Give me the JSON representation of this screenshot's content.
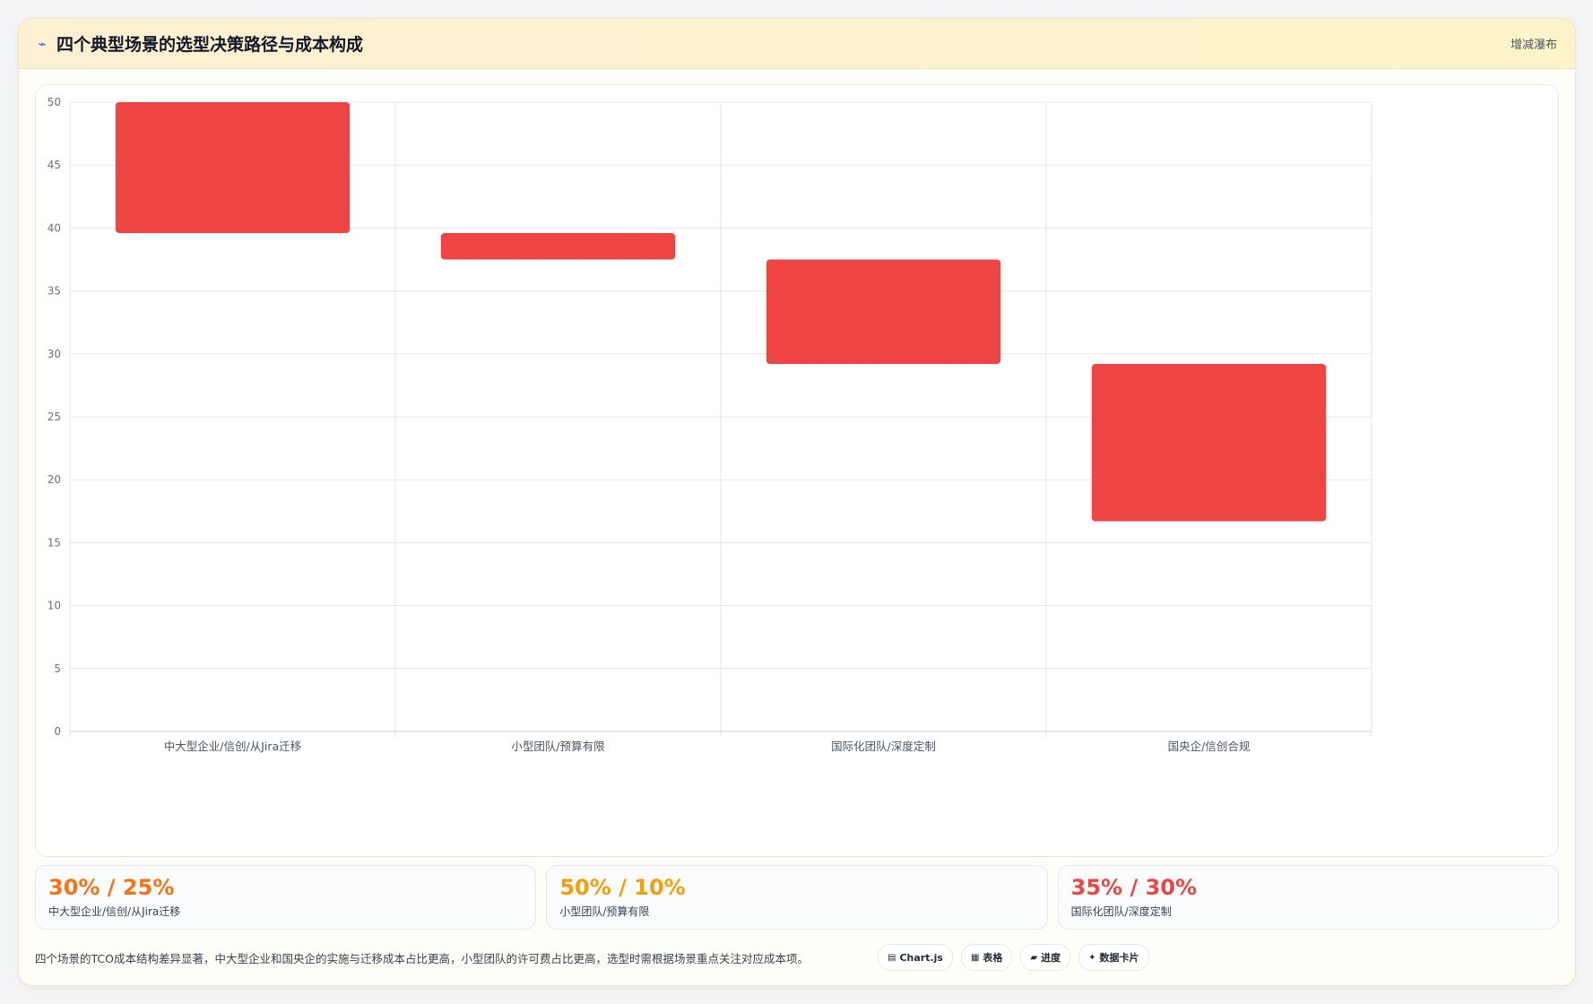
{
  "header": {
    "icon": "trend-line-icon",
    "title": "四个典型场景的选型决策路径与成本构成",
    "tag": "增减瀑布"
  },
  "colors": {
    "bar": "#ef4444",
    "stat_orange": "#f97316",
    "stat_amber": "#f59e0b",
    "stat_red": "#ef4444",
    "grid": "#e5e7eb",
    "axis_text": "#6b7280"
  },
  "chart_data": {
    "type": "waterfall",
    "title": "",
    "xlabel": "",
    "ylabel": "",
    "ylim": [
      0,
      50
    ],
    "yticks": [
      0,
      5,
      10,
      15,
      20,
      25,
      30,
      35,
      40,
      45,
      50
    ],
    "grid": true,
    "categories": [
      "中大型企业/信创/从Jira迁移",
      "小型团队/预算有限",
      "国际化团队/深度定制",
      "国央企/信创合规"
    ],
    "series": [
      {
        "values": [
          [
            39.6,
            50
          ],
          [
            37.5,
            39.6
          ],
          [
            29.2,
            37.5
          ],
          [
            16.7,
            29.2
          ]
        ]
      }
    ]
  },
  "stats": [
    {
      "value": "30% / 25%",
      "label": "中大型企业/信创/从Jira迁移",
      "color": "#f97316"
    },
    {
      "value": "50% / 10%",
      "label": "小型团队/预算有限",
      "color": "#f59e0b"
    },
    {
      "value": "35% / 30%",
      "label": "国际化团队/深度定制",
      "color": "#ef4444"
    }
  ],
  "footer": {
    "note": "四个场景的TCO成本结构差异显著，中大型企业和国央企的实施与迁移成本占比更高，小型团队的许可费占比更高，选型时需根据场景重点关注对应成本项。",
    "chips": [
      {
        "icon": "chart-icon",
        "glyph": "▤",
        "label": "Chart.js"
      },
      {
        "icon": "table-icon",
        "glyph": "▦",
        "label": "表格"
      },
      {
        "icon": "progress-icon",
        "glyph": "▰",
        "label": "进度"
      },
      {
        "icon": "card-icon",
        "glyph": "✦",
        "label": "数据卡片"
      }
    ]
  }
}
